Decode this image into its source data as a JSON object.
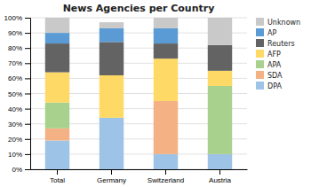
{
  "chart_data": {
    "type": "bar",
    "stacked": true,
    "title": "News Agencies per Country",
    "categories": [
      "Total",
      "Germany",
      "Switzerland",
      "Austria"
    ],
    "series": [
      {
        "name": "DPA",
        "color": "#9DC3E6",
        "values": [
          19,
          34,
          10,
          10
        ]
      },
      {
        "name": "SDA",
        "color": "#F4B183",
        "values": [
          8,
          0,
          35,
          0
        ]
      },
      {
        "name": "APA",
        "color": "#A9D18E",
        "values": [
          17,
          0,
          0,
          45
        ]
      },
      {
        "name": "AFP",
        "color": "#FFD966",
        "values": [
          20,
          28,
          28,
          10
        ]
      },
      {
        "name": "Reuters",
        "color": "#636363",
        "values": [
          19,
          22,
          10,
          17
        ]
      },
      {
        "name": "AP",
        "color": "#5B9BD5",
        "values": [
          7,
          9,
          10,
          0
        ]
      },
      {
        "name": "Unknown",
        "color": "#C9C9C9",
        "values": [
          10,
          4,
          7,
          18
        ]
      }
    ],
    "ylim": [
      0,
      100
    ],
    "yticks": [
      {
        "value": 0,
        "label": "0%"
      },
      {
        "value": 10,
        "label": "10%"
      },
      {
        "value": 20,
        "label": "20%"
      },
      {
        "value": 30,
        "label": "30%"
      },
      {
        "value": 40,
        "label": "40%"
      },
      {
        "value": 50,
        "label": "50%"
      },
      {
        "value": 60,
        "label": "60%"
      },
      {
        "value": 70,
        "label": "70%"
      },
      {
        "value": 80,
        "label": "80%"
      },
      {
        "value": 90,
        "label": "90%"
      },
      {
        "value": 100,
        "label": "100%"
      }
    ],
    "grid": true,
    "legend": "right"
  }
}
